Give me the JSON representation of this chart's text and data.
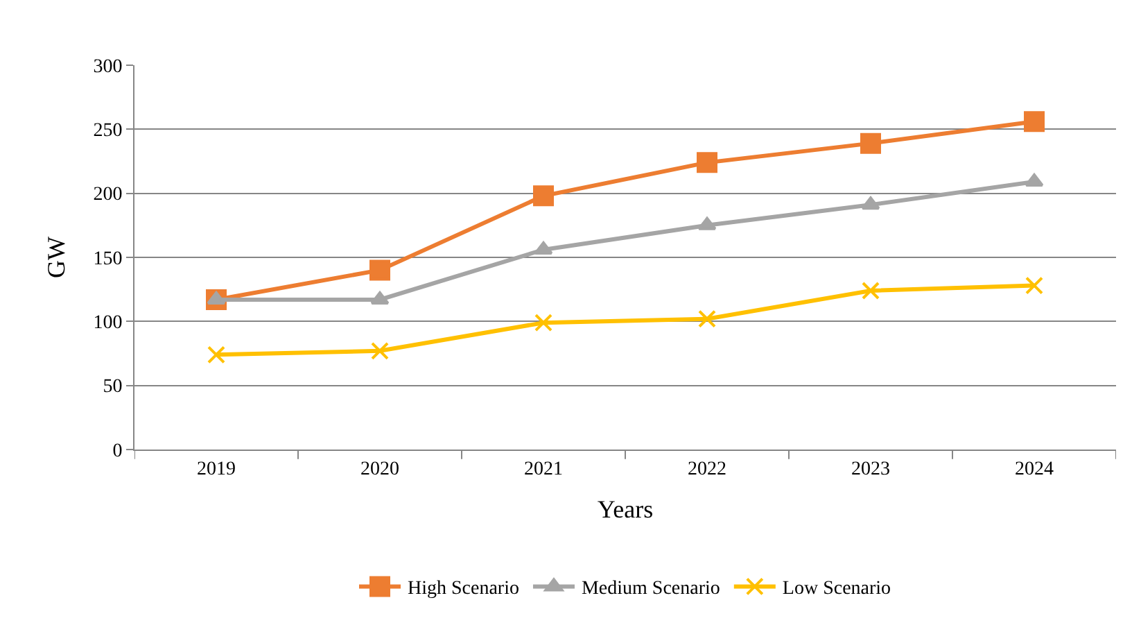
{
  "chart_data": {
    "type": "line",
    "xlabel": "Years",
    "ylabel": "GW",
    "categories": [
      "2019",
      "2020",
      "2021",
      "2022",
      "2023",
      "2024"
    ],
    "series": [
      {
        "name": "High Scenario",
        "color": "#ed7d31",
        "marker": "square",
        "values": [
          117,
          140,
          198,
          224,
          239,
          256
        ]
      },
      {
        "name": "Medium Scenario",
        "color": "#a5a5a5",
        "marker": "triangle",
        "values": [
          117,
          117,
          156,
          175,
          191,
          209
        ]
      },
      {
        "name": "Low Scenario",
        "color": "#ffc000",
        "marker": "cross",
        "values": [
          74,
          77,
          99,
          102,
          124,
          128
        ]
      }
    ],
    "ylim": [
      0,
      300
    ],
    "yticks": [
      0,
      50,
      100,
      150,
      200,
      250,
      300
    ],
    "grid": "y",
    "legend": "bottom",
    "line_style": "solid"
  }
}
